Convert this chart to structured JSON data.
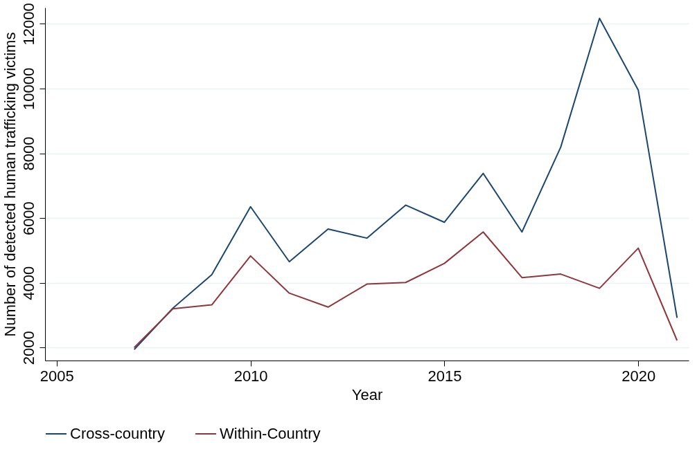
{
  "chart_data": {
    "type": "line",
    "xlabel": "Year",
    "ylabel": "Number of detected human trafficking victims",
    "x": [
      2007,
      2008,
      2009,
      2010,
      2011,
      2012,
      2013,
      2014,
      2015,
      2016,
      2017,
      2018,
      2019,
      2020,
      2021
    ],
    "series": [
      {
        "name": "Cross-country",
        "color": "#1a476f",
        "values": [
          1940,
          3220,
          4250,
          6350,
          4650,
          5660,
          5380,
          6400,
          5870,
          7380,
          5570,
          8190,
          12170,
          9950,
          2920
        ]
      },
      {
        "name": "Within-Country",
        "color": "#90353b",
        "values": [
          2000,
          3200,
          3320,
          4830,
          3680,
          3250,
          3960,
          4010,
          4600,
          5570,
          4160,
          4270,
          3830,
          5070,
          2220
        ]
      }
    ],
    "xlim": [
      2004.7,
      2021.3
    ],
    "xticks": [
      2005,
      2010,
      2015,
      2020
    ],
    "ylim": [
      1600,
      12500
    ],
    "yticks": [
      2000,
      4000,
      6000,
      8000,
      10000,
      12000
    ],
    "grid": "y",
    "legend": "bottom",
    "marker": "none",
    "line_style": "solid"
  }
}
